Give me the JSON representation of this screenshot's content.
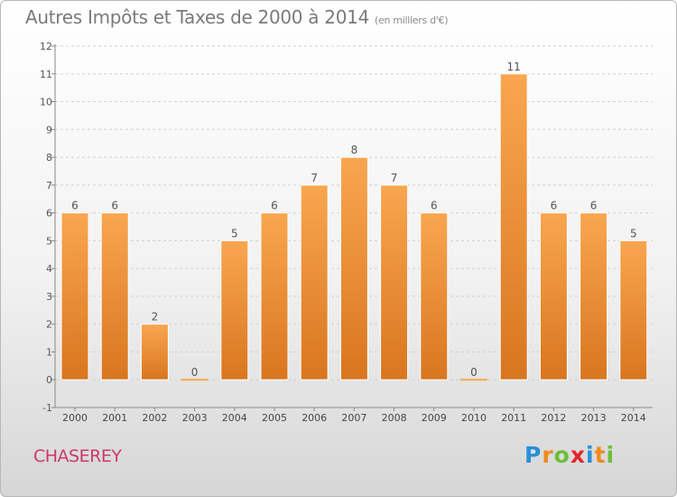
{
  "title": "Autres Impôts et Taxes de 2000 à 2014",
  "subtitle": "(en milliers d'€)",
  "commune": "CHASEREY",
  "logo": {
    "letters": [
      "P",
      "r",
      "o",
      "x",
      "i",
      "t",
      "i"
    ],
    "colors": [
      "#2a8fd6",
      "#f08a1c",
      "#6cbf3a",
      "#e4262d",
      "#2a8fd6",
      "#f08a1c",
      "#6cbf3a"
    ]
  },
  "colors": {
    "bar_light": "#f9a650",
    "bar_dark": "#d8761f",
    "title": "#7a7a7a",
    "commune": "#c93a6a"
  },
  "chart_data": {
    "type": "bar",
    "title": "Autres Impôts et Taxes de 2000 à 2014",
    "subtitle": "(en milliers d'€)",
    "categories": [
      "2000",
      "2001",
      "2002",
      "2003",
      "2004",
      "2005",
      "2006",
      "2007",
      "2008",
      "2009",
      "2010",
      "2011",
      "2012",
      "2013",
      "2014"
    ],
    "values": [
      6,
      6,
      2,
      0,
      5,
      6,
      7,
      8,
      7,
      6,
      0,
      11,
      6,
      6,
      5
    ],
    "ylim": [
      -1,
      12
    ],
    "yticks": [
      "-1",
      "0",
      "1",
      "2",
      "3",
      "4",
      "5",
      "6",
      "7",
      "8",
      "9",
      "10",
      "11",
      "12"
    ],
    "grid": "horizontal dashed",
    "legend": "none"
  }
}
